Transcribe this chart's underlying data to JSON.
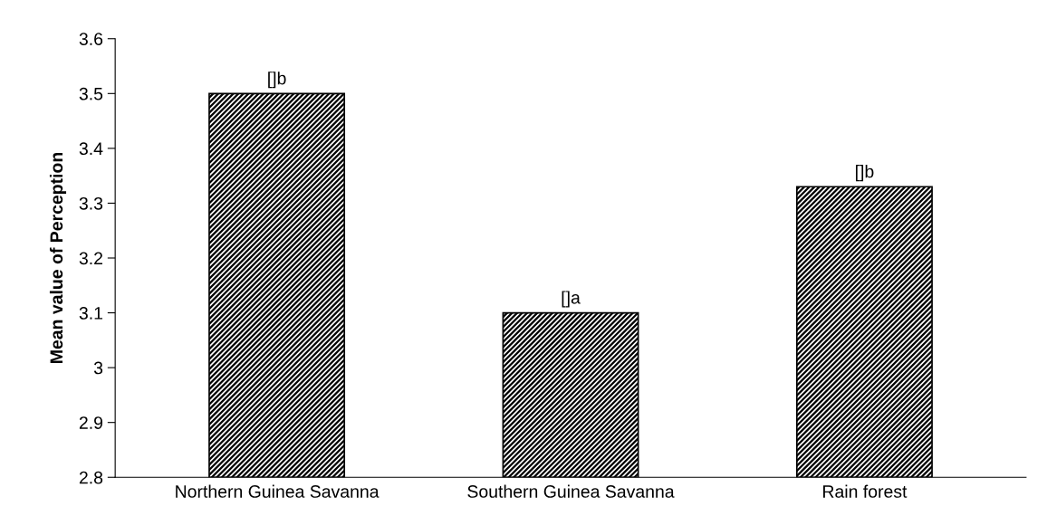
{
  "chart_data": {
    "type": "bar",
    "ylabel": "Mean value of Perception",
    "categories": [
      "Northern Guinea Savanna",
      "Southern Guinea Savanna",
      "Rain forest"
    ],
    "values": [
      3.5,
      3.1,
      3.33
    ],
    "value_labels": [
      "[]b",
      "[]a",
      "[]b"
    ],
    "color": "#000000",
    "ylim": [
      2.8,
      3.6
    ],
    "yticks": [
      2.8,
      2.9,
      3,
      3.1,
      3.2,
      3.3,
      3.4,
      3.5,
      3.6
    ],
    "grid": false
  }
}
